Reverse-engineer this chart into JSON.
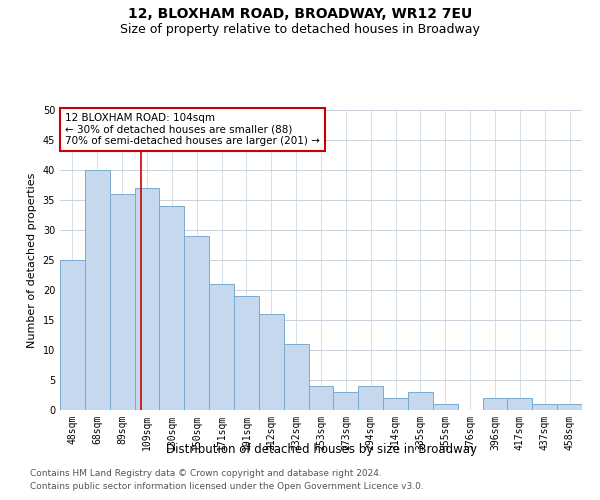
{
  "title": "12, BLOXHAM ROAD, BROADWAY, WR12 7EU",
  "subtitle": "Size of property relative to detached houses in Broadway",
  "xlabel": "Distribution of detached houses by size in Broadway",
  "ylabel": "Number of detached properties",
  "categories": [
    "48sqm",
    "68sqm",
    "89sqm",
    "109sqm",
    "130sqm",
    "150sqm",
    "171sqm",
    "191sqm",
    "212sqm",
    "232sqm",
    "253sqm",
    "273sqm",
    "294sqm",
    "314sqm",
    "335sqm",
    "355sqm",
    "376sqm",
    "396sqm",
    "417sqm",
    "437sqm",
    "458sqm"
  ],
  "values": [
    25,
    40,
    36,
    37,
    34,
    29,
    21,
    19,
    16,
    11,
    4,
    3,
    4,
    2,
    3,
    1,
    0,
    2,
    2,
    1,
    1
  ],
  "bar_color": "#c5d8ed",
  "bar_edge_color": "#7aabcf",
  "vline_color": "#cc0000",
  "vline_position": 2.75,
  "annotation_box_text": "12 BLOXHAM ROAD: 104sqm\n← 30% of detached houses are smaller (88)\n70% of semi-detached houses are larger (201) →",
  "annotation_box_color": "#cc0000",
  "ylim": [
    0,
    50
  ],
  "yticks": [
    0,
    5,
    10,
    15,
    20,
    25,
    30,
    35,
    40,
    45,
    50
  ],
  "background_color": "#ffffff",
  "grid_color": "#c8d0dc",
  "footer_line1": "Contains HM Land Registry data © Crown copyright and database right 2024.",
  "footer_line2": "Contains public sector information licensed under the Open Government Licence v3.0.",
  "title_fontsize": 10,
  "subtitle_fontsize": 9,
  "xlabel_fontsize": 8.5,
  "ylabel_fontsize": 8,
  "tick_fontsize": 7,
  "footer_fontsize": 6.5,
  "annot_fontsize": 7.5
}
